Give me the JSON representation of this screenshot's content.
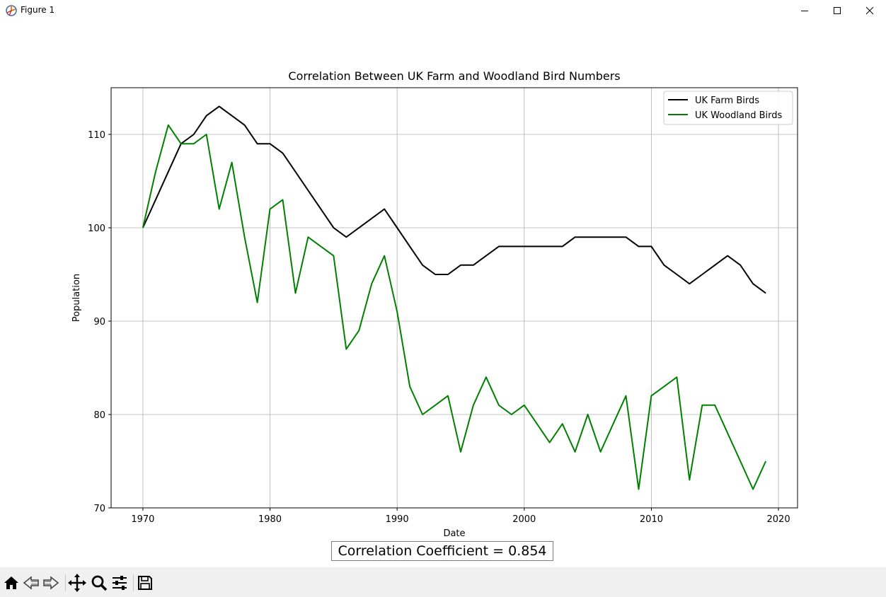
{
  "window": {
    "title": "Figure 1",
    "icons": [
      "app-icon",
      "minimize-icon",
      "maximize-icon",
      "close-icon"
    ]
  },
  "toolbar": {
    "buttons": [
      "home-icon",
      "back-icon",
      "forward-icon",
      "pan-icon",
      "zoom-icon",
      "configure-subplots-icon",
      "save-icon"
    ]
  },
  "annotation": {
    "text": "Correlation Coefficient = 0.854"
  },
  "chart_data": {
    "type": "line",
    "title": "Correlation Between UK Farm and Woodland Bird Numbers",
    "xlabel": "Date",
    "ylabel": "Population",
    "xlim": [
      1967.5,
      2021.5
    ],
    "ylim": [
      70,
      115
    ],
    "xticks": [
      1970,
      1980,
      1990,
      2000,
      2010,
      2020
    ],
    "yticks": [
      70,
      80,
      90,
      100,
      110
    ],
    "grid": true,
    "legend_position": "top-right",
    "x": [
      1970,
      1971,
      1972,
      1973,
      1974,
      1975,
      1976,
      1977,
      1978,
      1979,
      1980,
      1981,
      1982,
      1983,
      1984,
      1985,
      1986,
      1987,
      1988,
      1989,
      1990,
      1991,
      1992,
      1993,
      1994,
      1995,
      1996,
      1997,
      1998,
      1999,
      2000,
      2001,
      2002,
      2003,
      2004,
      2005,
      2006,
      2007,
      2008,
      2009,
      2010,
      2011,
      2012,
      2013,
      2014,
      2015,
      2016,
      2017,
      2018,
      2019
    ],
    "series": [
      {
        "name": "UK Farm Birds",
        "color": "#000000",
        "values": [
          100,
          103,
          106,
          109,
          110,
          112,
          113,
          112,
          111,
          109,
          109,
          108,
          106,
          104,
          102,
          100,
          99,
          100,
          101,
          102,
          100,
          98,
          96,
          95,
          95,
          96,
          96,
          97,
          98,
          98,
          98,
          98,
          98,
          98,
          99,
          99,
          99,
          99,
          99,
          98,
          98,
          96,
          95,
          94,
          95,
          96,
          97,
          96,
          94,
          93
        ]
      },
      {
        "name": "UK Woodland Birds",
        "color": "#008000",
        "values": [
          100,
          106,
          111,
          109,
          109,
          110,
          102,
          107,
          99,
          92,
          102,
          103,
          93,
          99,
          98,
          97,
          87,
          89,
          94,
          97,
          91,
          83,
          80,
          81,
          82,
          76,
          81,
          84,
          81,
          80,
          81,
          79,
          77,
          79,
          76,
          80,
          76,
          79,
          82,
          72,
          82,
          83,
          84,
          73,
          81,
          81,
          78,
          75,
          72,
          75
        ]
      }
    ]
  }
}
